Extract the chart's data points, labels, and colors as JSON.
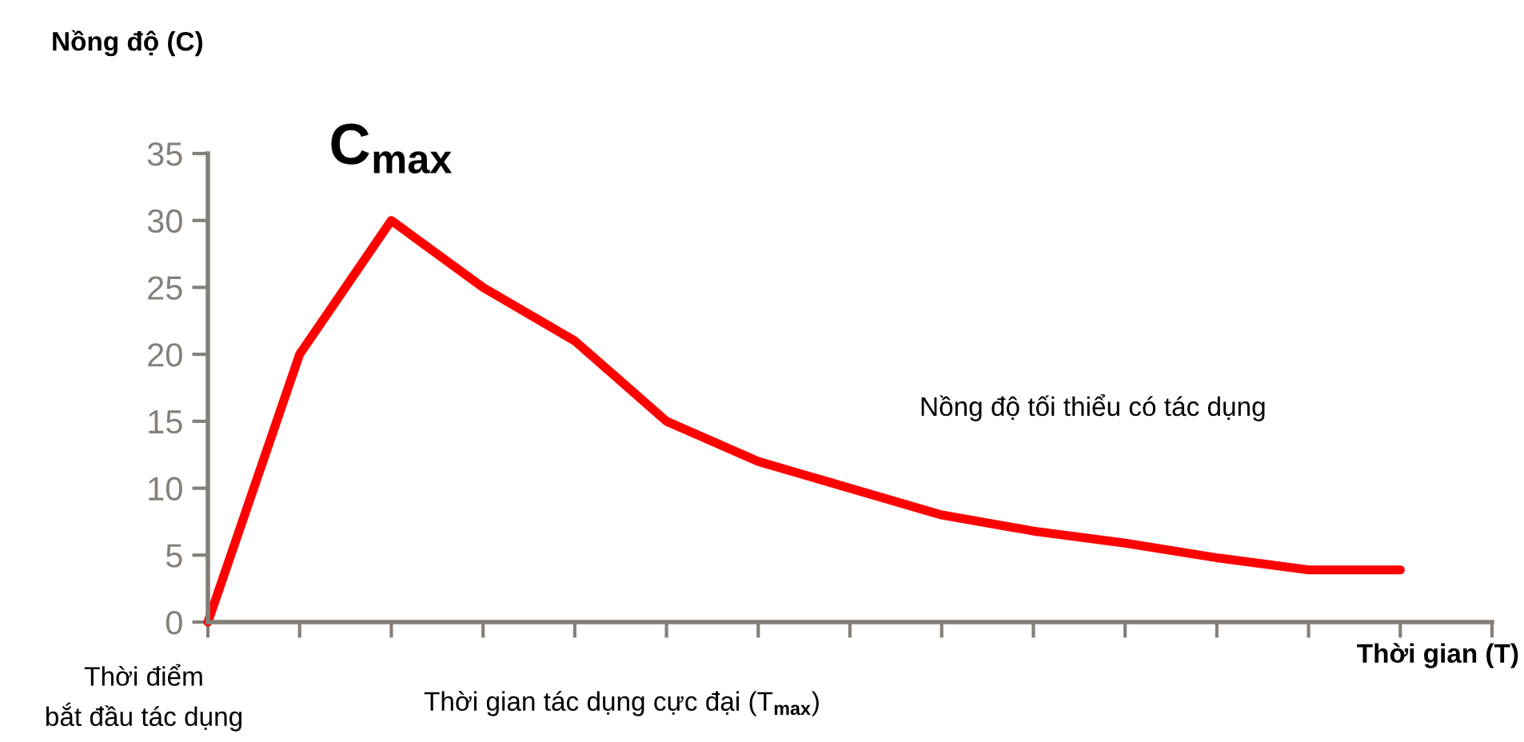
{
  "chart_data": {
    "type": "line",
    "ylabel": "Nồng độ (C)",
    "xlabel": "Thời gian (T)",
    "categories": [
      null,
      null,
      null,
      null,
      null,
      null,
      null,
      null,
      null,
      null,
      null,
      null,
      null,
      null,
      null
    ],
    "series": [
      {
        "color": "#ff0000",
        "values": [
          0,
          20,
          30,
          25,
          21,
          15,
          12,
          10,
          8,
          6.8,
          5.9,
          4.8,
          3.9,
          3.9,
          null
        ]
      }
    ],
    "ylim": [
      0,
      35
    ],
    "yticks": [
      0,
      5,
      10,
      15,
      20,
      25,
      30,
      35
    ],
    "grid": false,
    "legend": false,
    "marker": "none",
    "line_style": "solid",
    "annotations": [
      "C$_{max}$",
      "Nồng độ tối thiểu có tác dụng",
      "Thời điểm\nbắt đầu tác dụng",
      "Thời gian tác dụng cực đại (T$_{max}$)"
    ]
  }
}
